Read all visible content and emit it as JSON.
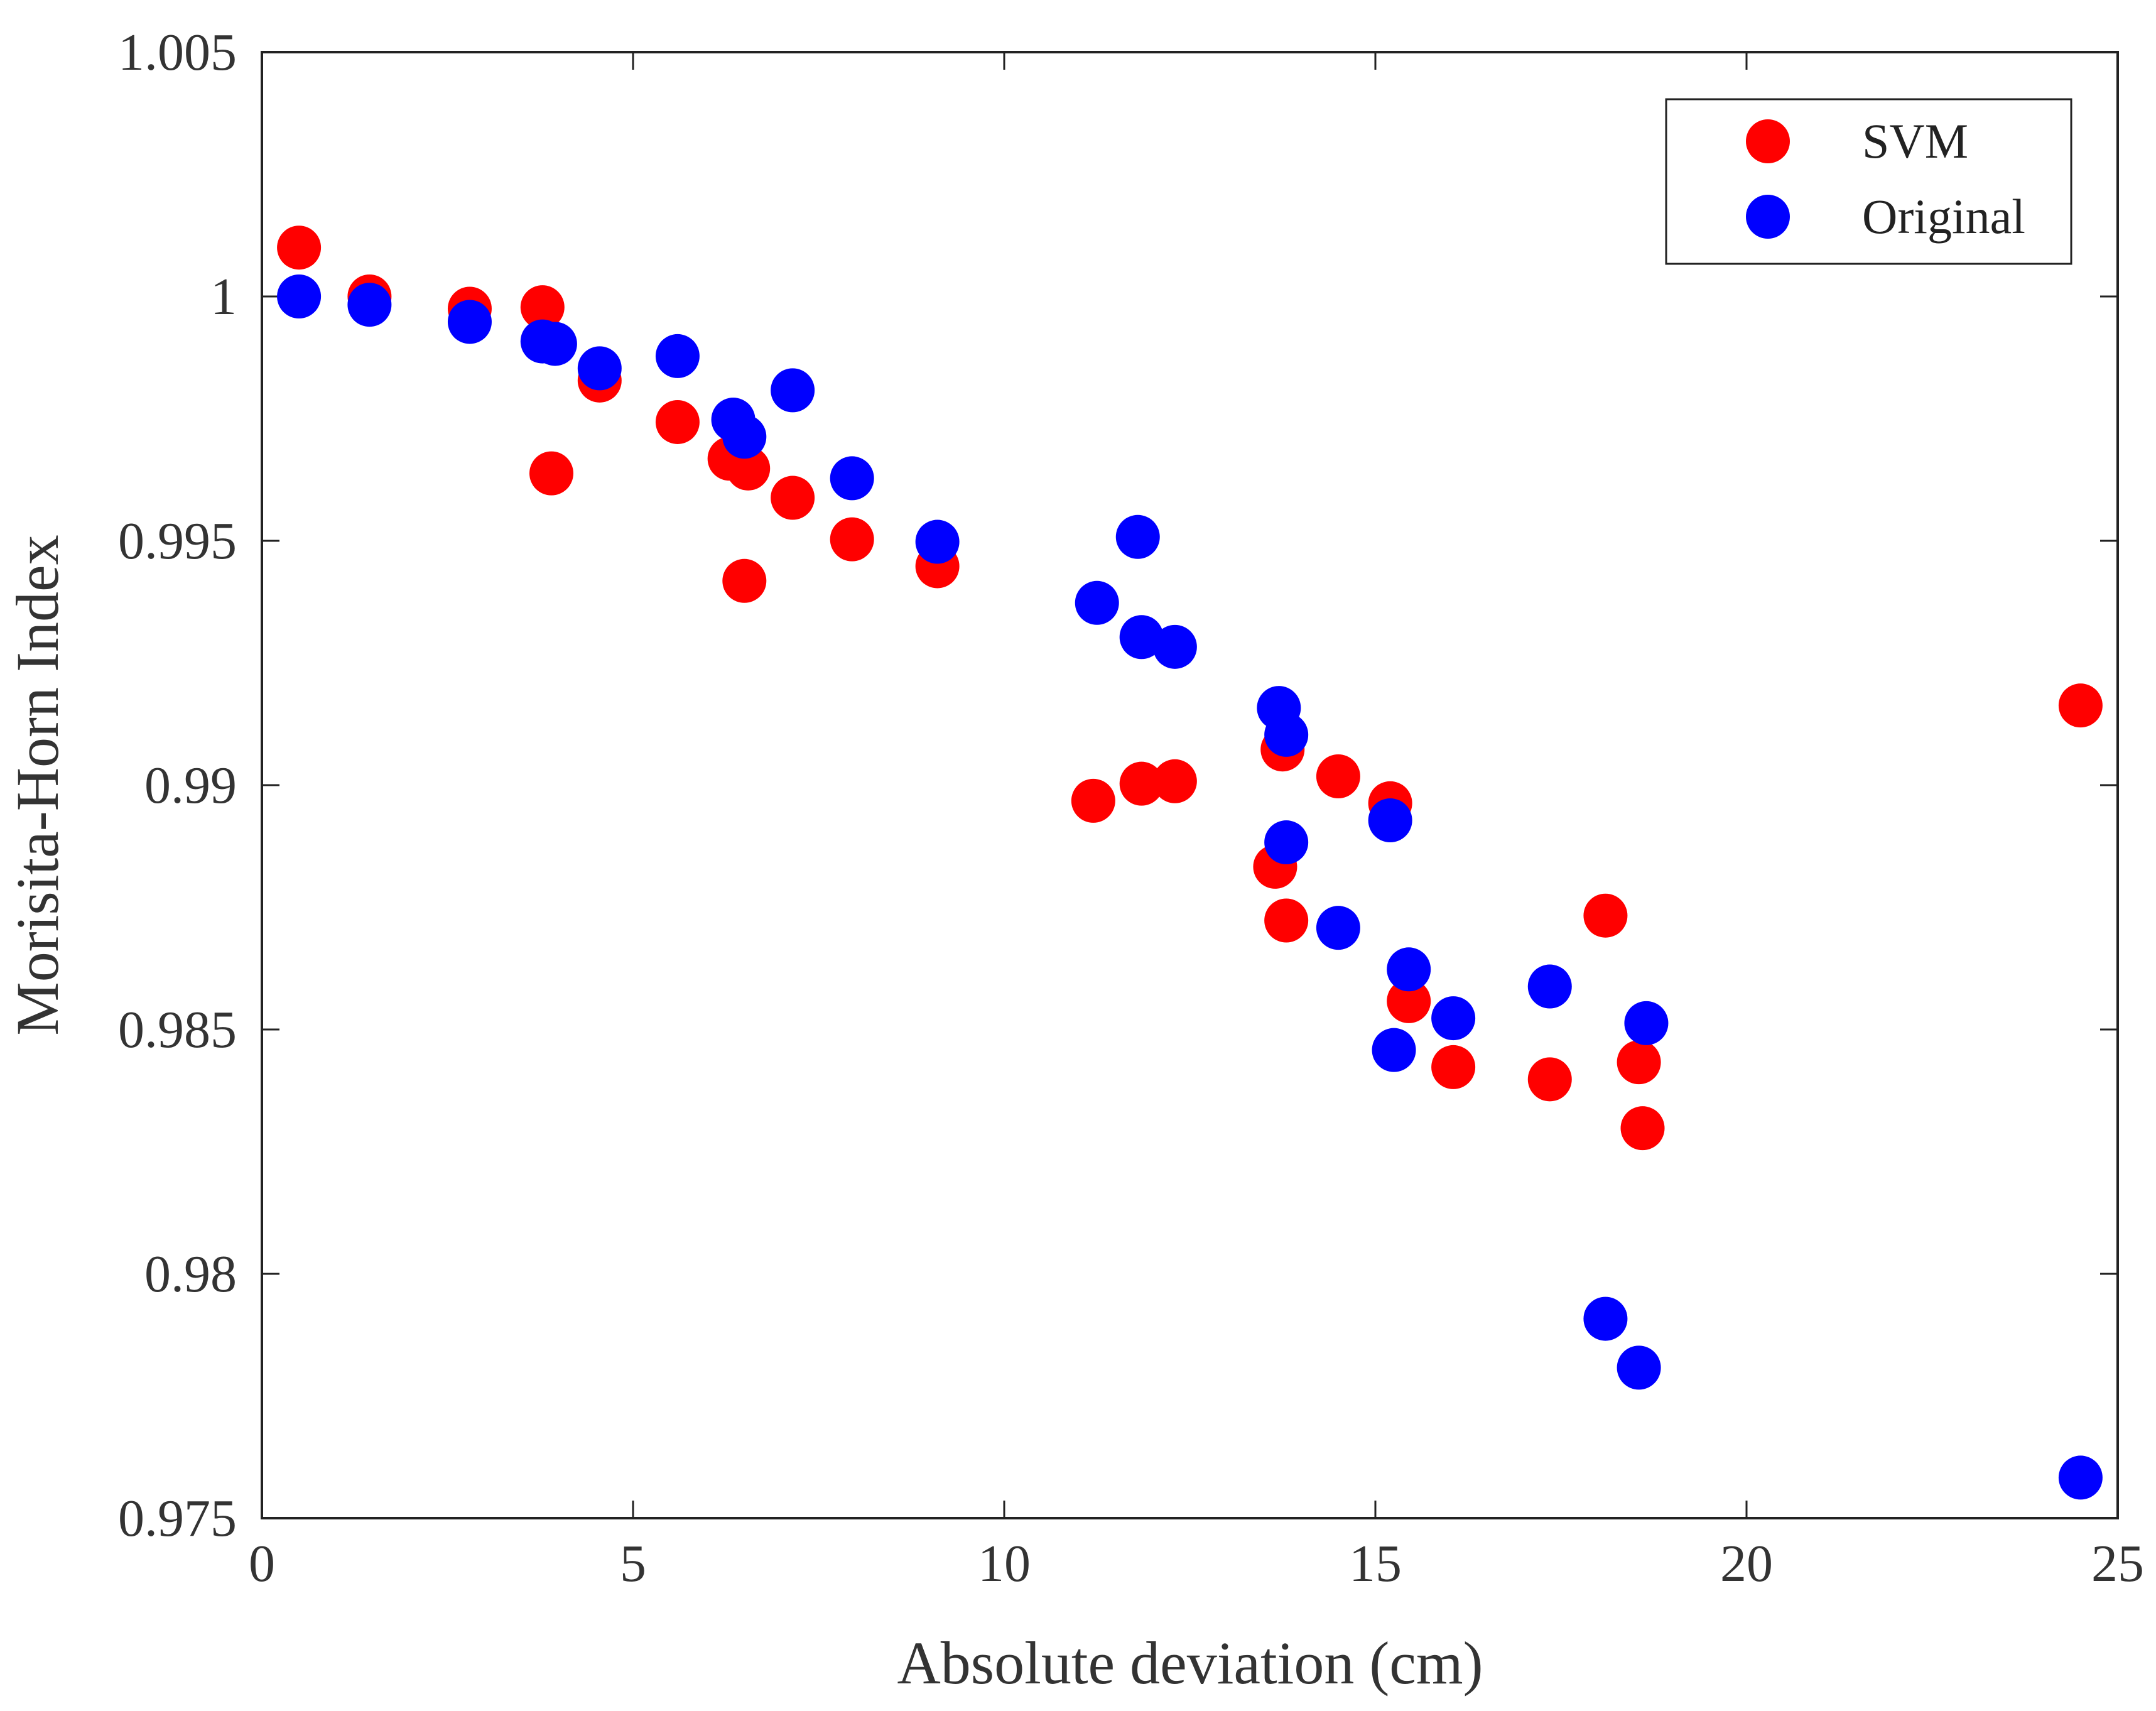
{
  "chart_data": {
    "type": "scatter",
    "title": "",
    "xlabel": "Absolute deviation (cm)",
    "ylabel": "Morisita-Horn Index",
    "xlim": [
      0,
      25
    ],
    "ylim": [
      0.975,
      1.005
    ],
    "x_ticks": [
      0,
      5,
      10,
      15,
      20,
      25
    ],
    "x_tick_labels": [
      "0",
      "5",
      "10",
      "15",
      "20",
      "25"
    ],
    "y_ticks": [
      0.975,
      0.98,
      0.985,
      0.99,
      0.995,
      1.0,
      1.005
    ],
    "y_tick_labels": [
      "0.975",
      "0.98",
      "0.985",
      "0.99",
      "0.995",
      "1",
      "1.005"
    ],
    "grid": false,
    "legend_position": "top-right",
    "series": [
      {
        "name": "SVM",
        "color": "#ff0000",
        "points": [
          [
            0.5,
            1.001
          ],
          [
            1.45,
            1.0
          ],
          [
            2.8,
            0.99975
          ],
          [
            3.78,
            0.99978
          ],
          [
            3.9,
            0.99638
          ],
          [
            4.55,
            0.99828
          ],
          [
            5.6,
            0.99743
          ],
          [
            6.3,
            0.99668
          ],
          [
            6.55,
            0.99648
          ],
          [
            6.5,
            0.99418
          ],
          [
            7.15,
            0.99588
          ],
          [
            7.95,
            0.99503
          ],
          [
            9.1,
            0.99448
          ],
          [
            11.2,
            0.98968
          ],
          [
            11.85,
            0.99003
          ],
          [
            12.3,
            0.99008
          ],
          [
            13.65,
            0.98833
          ],
          [
            13.75,
            0.99073
          ],
          [
            13.8,
            0.98723
          ],
          [
            14.5,
            0.99018
          ],
          [
            15.2,
            0.98963
          ],
          [
            15.45,
            0.98558
          ],
          [
            16.05,
            0.98423
          ],
          [
            17.35,
            0.98398
          ],
          [
            18.1,
            0.98733
          ],
          [
            18.55,
            0.98433
          ],
          [
            18.6,
            0.98298
          ],
          [
            24.5,
            0.99163
          ]
        ]
      },
      {
        "name": "Original",
        "color": "#0000ff",
        "points": [
          [
            0.5,
            1.0
          ],
          [
            1.45,
            0.99983
          ],
          [
            2.8,
            0.99948
          ],
          [
            3.78,
            0.99908
          ],
          [
            3.95,
            0.99903
          ],
          [
            4.55,
            0.99853
          ],
          [
            5.6,
            0.99878
          ],
          [
            6.35,
            0.99748
          ],
          [
            6.5,
            0.99713
          ],
          [
            7.15,
            0.99808
          ],
          [
            7.95,
            0.99628
          ],
          [
            9.1,
            0.99498
          ],
          [
            11.25,
            0.99373
          ],
          [
            11.8,
            0.99508
          ],
          [
            11.85,
            0.99303
          ],
          [
            12.3,
            0.99283
          ],
          [
            13.7,
            0.99158
          ],
          [
            13.8,
            0.99103
          ],
          [
            13.8,
            0.98883
          ],
          [
            14.5,
            0.98708
          ],
          [
            15.2,
            0.98928
          ],
          [
            15.25,
            0.98458
          ],
          [
            15.45,
            0.98623
          ],
          [
            16.05,
            0.98523
          ],
          [
            17.35,
            0.98588
          ],
          [
            18.1,
            0.97908
          ],
          [
            18.55,
            0.97808
          ],
          [
            18.65,
            0.98513
          ],
          [
            24.5,
            0.97583
          ]
        ]
      }
    ]
  }
}
